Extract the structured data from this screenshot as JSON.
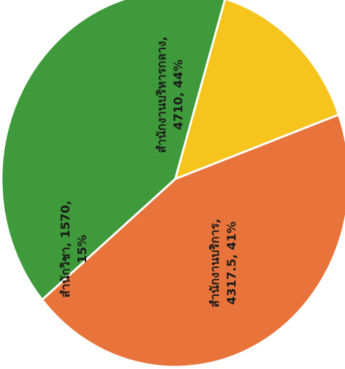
{
  "chart_data": {
    "type": "pie",
    "title": "",
    "slices": [
      {
        "label": "สำนักงานบริหารกลาง",
        "value": 4710,
        "percent": "44%",
        "color": "#E8743B"
      },
      {
        "label": "สำนักงานบริการ",
        "value": 4317.5,
        "percent": "41%",
        "color": "#3E9A3A"
      },
      {
        "label": "สำนักวิชา",
        "value": 1570,
        "percent": "15%",
        "color": "#F5C51D"
      }
    ],
    "labels": [
      {
        "line1": "สำนักงานบริหารกลาง,",
        "line2": "4710, 44%"
      },
      {
        "line1": "สำนักงานบริการ,",
        "line2": "4317.5, 41%"
      },
      {
        "line1": "สำนักวิชา, 1570,",
        "line2": "15%"
      }
    ]
  }
}
